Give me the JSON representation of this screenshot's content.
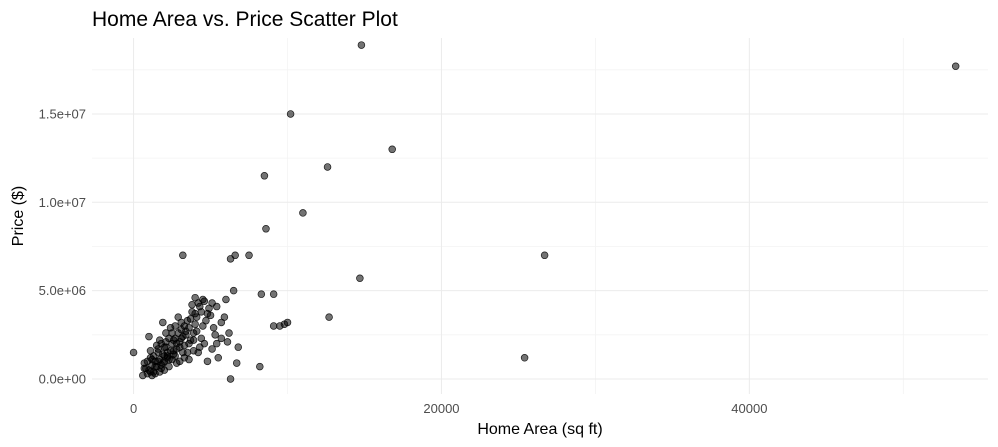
{
  "chart_data": {
    "type": "scatter",
    "title": "Home Area vs. Price Scatter Plot",
    "xlabel": "Home Area (sq ft)",
    "ylabel": "Price ($)",
    "xlim": [
      -2700,
      55500
    ],
    "ylim": [
      -850000,
      19300000
    ],
    "x_ticks": [
      0,
      20000,
      40000
    ],
    "x_tick_labels": [
      "0",
      "20000",
      "40000"
    ],
    "y_ticks": [
      0,
      5000000,
      10000000,
      15000000
    ],
    "y_tick_labels": [
      "0.0e+00",
      "5.0e+06",
      "1.0e+07",
      "1.5e+07"
    ],
    "grid": true,
    "legend": "none",
    "point_color": "#000000",
    "points": [
      [
        53400,
        17700000
      ],
      [
        14800,
        18900000
      ],
      [
        10200,
        15000000
      ],
      [
        16800,
        13000000
      ],
      [
        12600,
        12000000
      ],
      [
        8500,
        11500000
      ],
      [
        11000,
        9400000
      ],
      [
        8600,
        8500000
      ],
      [
        26700,
        7000000
      ],
      [
        3200,
        7000000
      ],
      [
        7500,
        7000000
      ],
      [
        14700,
        5700000
      ],
      [
        6600,
        7000000
      ],
      [
        6300,
        6800000
      ],
      [
        6500,
        5000000
      ],
      [
        8300,
        4800000
      ],
      [
        9100,
        4800000
      ],
      [
        12700,
        3500000
      ],
      [
        10000,
        3200000
      ],
      [
        9800,
        3100000
      ],
      [
        9500,
        3000000
      ],
      [
        9100,
        3000000
      ],
      [
        25400,
        1200000
      ],
      [
        8200,
        700000
      ],
      [
        6300,
        0
      ],
      [
        6700,
        900000
      ],
      [
        6800,
        1800000
      ],
      [
        6200,
        2600000
      ],
      [
        6000,
        4500000
      ],
      [
        5900,
        3500000
      ],
      [
        5700,
        3200000
      ],
      [
        5400,
        4100000
      ],
      [
        5100,
        4300000
      ],
      [
        4900,
        4000000
      ],
      [
        4700,
        3300000
      ],
      [
        4600,
        4400000
      ],
      [
        4400,
        3800000
      ],
      [
        4200,
        4300000
      ],
      [
        4100,
        3500000
      ],
      [
        4000,
        3100000
      ],
      [
        3900,
        2600000
      ],
      [
        3800,
        3800000
      ],
      [
        3700,
        2200000
      ],
      [
        3600,
        2900000
      ],
      [
        3500,
        3300000
      ],
      [
        3400,
        2500000
      ],
      [
        3300,
        1900000
      ],
      [
        3200,
        2400000
      ],
      [
        3100,
        2800000
      ],
      [
        3000,
        2100000
      ],
      [
        2900,
        2600000
      ],
      [
        2800,
        1700000
      ],
      [
        2700,
        2300000
      ],
      [
        2600,
        1400000
      ],
      [
        2500,
        2000000
      ],
      [
        2400,
        1600000
      ],
      [
        2300,
        2300000
      ],
      [
        2200,
        1200000
      ],
      [
        2100,
        1800000
      ],
      [
        2000,
        1000000
      ],
      [
        1900,
        1400000
      ],
      [
        1800,
        800000
      ],
      [
        1700,
        1100000
      ],
      [
        1600,
        1500000
      ],
      [
        1500,
        700000
      ],
      [
        1400,
        1000000
      ],
      [
        1300,
        400000
      ],
      [
        1200,
        800000
      ],
      [
        1100,
        1200000
      ],
      [
        1000,
        500000
      ],
      [
        900,
        300000
      ],
      [
        800,
        600000
      ],
      [
        700,
        900000
      ],
      [
        600,
        200000
      ],
      [
        1000,
        2400000
      ],
      [
        0,
        1500000
      ],
      [
        1900,
        3200000
      ],
      [
        2700,
        3000000
      ],
      [
        3500,
        1500000
      ],
      [
        4400,
        2300000
      ],
      [
        5100,
        1700000
      ],
      [
        5500,
        1200000
      ],
      [
        4800,
        1000000
      ],
      [
        5300,
        2500000
      ],
      [
        4300,
        1800000
      ],
      [
        3900,
        1600000
      ],
      [
        3300,
        1200000
      ],
      [
        2800,
        900000
      ],
      [
        2300,
        700000
      ],
      [
        2000,
        500000
      ],
      [
        1700,
        400000
      ],
      [
        1400,
        300000
      ],
      [
        1200,
        200000
      ],
      [
        2500,
        1100000
      ],
      [
        2200,
        1500000
      ],
      [
        1800,
        2000000
      ],
      [
        1600,
        1700000
      ],
      [
        2100,
        2600000
      ],
      [
        2600,
        2200000
      ],
      [
        3000,
        1800000
      ],
      [
        3600,
        2000000
      ],
      [
        4100,
        2700000
      ],
      [
        4500,
        3000000
      ],
      [
        5000,
        3600000
      ],
      [
        5200,
        2900000
      ],
      [
        5700,
        2300000
      ],
      [
        6100,
        2100000
      ],
      [
        3800,
        4200000
      ],
      [
        4300,
        4100000
      ],
      [
        4800,
        3700000
      ],
      [
        2400,
        2900000
      ],
      [
        2900,
        3500000
      ],
      [
        1300,
        1300000
      ],
      [
        1500,
        1900000
      ],
      [
        1100,
        1600000
      ],
      [
        900,
        1000000
      ],
      [
        700,
        600000
      ],
      [
        1900,
        900000
      ],
      [
        2200,
        1300000
      ],
      [
        2600,
        1600000
      ],
      [
        3100,
        2300000
      ],
      [
        3400,
        2700000
      ],
      [
        3700,
        3400000
      ],
      [
        4000,
        3700000
      ],
      [
        2000,
        1800000
      ],
      [
        1600,
        1000000
      ],
      [
        1400,
        700000
      ],
      [
        1100,
        400000
      ],
      [
        2800,
        2000000
      ],
      [
        3200,
        1500000
      ],
      [
        3600,
        1100000
      ],
      [
        4200,
        1500000
      ],
      [
        1800,
        600000
      ],
      [
        2300,
        1100000
      ],
      [
        2700,
        1300000
      ],
      [
        3000,
        1000000
      ],
      [
        1200,
        1100000
      ],
      [
        2500,
        2600000
      ],
      [
        2100,
        2100000
      ],
      [
        1700,
        2200000
      ],
      [
        3300,
        3000000
      ],
      [
        3900,
        2200000
      ],
      [
        4600,
        2000000
      ],
      [
        5400,
        2000000
      ],
      [
        4000,
        4600000
      ],
      [
        4500,
        4500000
      ],
      [
        3100,
        3200000
      ],
      [
        2000,
        1300000
      ]
    ]
  }
}
